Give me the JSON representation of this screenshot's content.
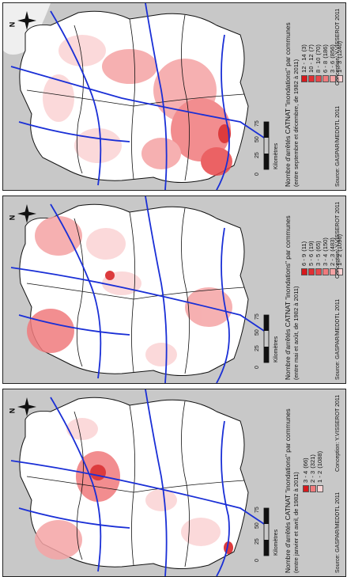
{
  "colors": {
    "background_country": "#c8c8c8",
    "region": "#ffffff",
    "river": "#1a2fd6",
    "boundary": "#111111",
    "class_high": "#d7191c",
    "class_mid_high": "#e8474a",
    "class_mid": "#f07a7c",
    "class_low_mid": "#f5a3a4",
    "class_low": "#f9c7c8",
    "class_lowest": "#fde2e2"
  },
  "panels": [
    {
      "id": "sept-dec",
      "title": "Nombre d'arrêtés CATNAT \"inondations\" par communes",
      "subtitle": "(entre septembre et décembre, de 1982 à 2011)",
      "legend": [
        {
          "label": "12 - 14",
          "count": "(3)",
          "color": "#d7191c"
        },
        {
          "label": "10 - 12",
          "count": "(7)",
          "color": "#e02f33"
        },
        {
          "label": "8 - 10",
          "count": "(70)",
          "color": "#e8474a"
        },
        {
          "label": "6 - 8",
          "count": "(186)",
          "color": "#f07a7c"
        },
        {
          "label": "3 - 6",
          "count": "(856)",
          "color": "#f5a3a4"
        },
        {
          "label": "1 - 3",
          "count": "(1240)",
          "color": "#fbd3d4"
        }
      ],
      "source": "Source: GASPAR/MEDDTL 2011",
      "conception": "Conception: Y.VISSEROT 2011",
      "scale_ticks": [
        "0",
        "25",
        "50",
        "75"
      ],
      "scale_unit": "Kilomètres",
      "north": "N"
    },
    {
      "id": "may-aug",
      "title": "Nombre d'arrêtés CATNAT \"inondations\" par communes",
      "subtitle": "(entre mai et août, de 1982 à 2011)",
      "legend": [
        {
          "label": "6 - 9",
          "count": "(11)",
          "color": "#d7191c"
        },
        {
          "label": "5 - 6",
          "count": "(19)",
          "color": "#e02f33"
        },
        {
          "label": "3 - 5",
          "count": "(65)",
          "color": "#e8474a"
        },
        {
          "label": "3 - 4",
          "count": "(150)",
          "color": "#f07a7c"
        },
        {
          "label": "2 - 3",
          "count": "(483)",
          "color": "#f5a3a4"
        },
        {
          "label": "1 - 2",
          "count": "(1096)",
          "color": "#fbd3d4"
        }
      ],
      "source": "Source: GASPAR/MEDDTL 2011",
      "conception": "Conception: Y.VISSEROT 2011",
      "scale_ticks": [
        "0",
        "25",
        "50",
        "75"
      ],
      "scale_unit": "Kilomètres",
      "north": "N"
    },
    {
      "id": "jan-apr",
      "title": "Nombre d'arrêtés CATNAT \"inondations\" par communes",
      "subtitle": "(entre janvier et avril, de 1982 à 2011)",
      "legend": [
        {
          "label": "3 - 4",
          "count": "(66)",
          "color": "#d7191c"
        },
        {
          "label": "2 - 3",
          "count": "(321)",
          "color": "#f07a7c"
        },
        {
          "label": "1 - 2",
          "count": "(1088)",
          "color": "#fbd3d4"
        }
      ],
      "source": "Source: GASPAR/MEDDTL 2011",
      "conception": "Conception: Y.VISSEROT 2011",
      "scale_ticks": [
        "0",
        "25",
        "50",
        "75"
      ],
      "scale_unit": "Kilomètres",
      "north": "N"
    }
  ]
}
